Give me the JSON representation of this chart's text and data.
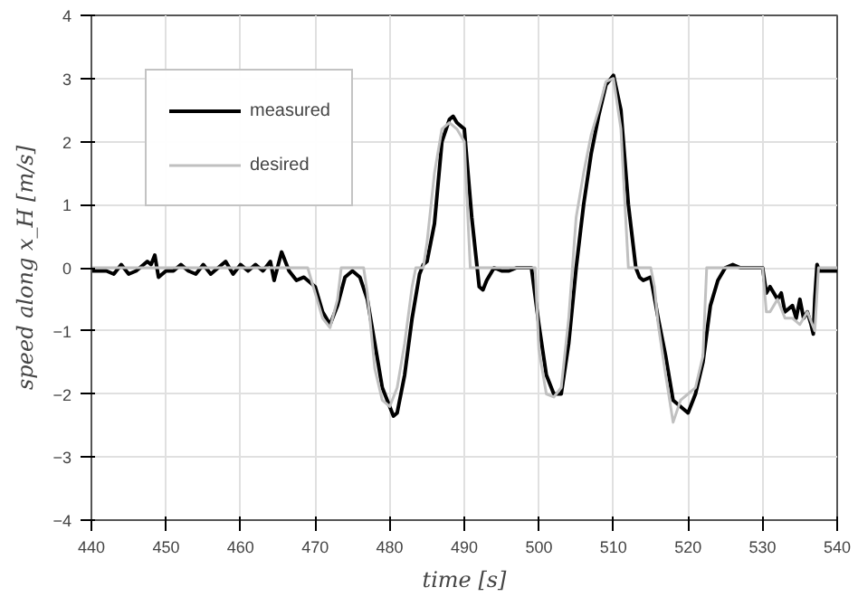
{
  "chart_data": {
    "type": "line",
    "xlabel": "time [s]",
    "ylabel": "speed along x_H [m/s]",
    "xlim": [
      440,
      540
    ],
    "ylim": [
      -4,
      4
    ],
    "xticks": [
      440,
      450,
      460,
      470,
      480,
      490,
      500,
      510,
      520,
      530,
      540
    ],
    "yticks": [
      -4,
      -3,
      -2,
      -1,
      0,
      1,
      2,
      3,
      4
    ],
    "grid": true,
    "legend": "top left",
    "marker": "none",
    "line_style": "solid",
    "series": [
      {
        "name": "measured",
        "color": "#000000",
        "x": [
          440,
          442,
          443,
          444,
          445,
          446,
          447,
          447.5,
          448,
          448.5,
          449,
          450,
          451,
          452,
          453,
          454,
          455,
          456,
          457,
          458,
          459,
          460,
          461,
          462,
          463,
          464,
          464.5,
          465.5,
          466.5,
          467.5,
          468.5,
          469,
          470,
          471,
          472,
          473,
          474,
          475,
          476,
          477,
          478,
          479,
          480,
          480.5,
          481,
          482,
          483,
          484,
          484.5,
          485,
          486,
          487,
          488,
          488.5,
          489,
          490,
          491,
          492,
          492.5,
          493,
          494,
          495,
          496,
          497,
          498,
          499,
          500,
          501,
          502,
          503,
          504,
          505,
          506,
          507,
          508,
          509,
          510,
          511,
          512,
          513,
          513.5,
          514,
          515,
          516,
          517,
          518,
          519,
          520,
          521,
          522,
          523,
          524,
          525,
          526,
          527,
          528,
          529,
          530,
          530.5,
          531,
          532,
          532.5,
          533,
          534,
          534.5,
          535,
          535.5,
          536,
          536.5,
          536.8,
          537,
          537.3,
          537.6,
          540
        ],
        "values": [
          -0.05,
          -0.05,
          -0.1,
          0.05,
          -0.1,
          -0.05,
          0.05,
          0.1,
          0.05,
          0.2,
          -0.15,
          -0.05,
          -0.05,
          0.05,
          -0.05,
          -0.1,
          0.05,
          -0.1,
          0,
          0.1,
          -0.1,
          0.05,
          -0.05,
          0.05,
          -0.05,
          0.1,
          -0.2,
          0.25,
          -0.05,
          -0.2,
          -0.15,
          -0.2,
          -0.3,
          -0.7,
          -0.9,
          -0.6,
          -0.15,
          -0.05,
          -0.15,
          -0.5,
          -1.2,
          -1.9,
          -2.2,
          -2.35,
          -2.3,
          -1.7,
          -0.8,
          -0.1,
          0.05,
          0.1,
          0.7,
          2.0,
          2.35,
          2.4,
          2.3,
          2.2,
          0.8,
          -0.3,
          -0.35,
          -0.2,
          0,
          -0.05,
          -0.05,
          0,
          0,
          0,
          -0.9,
          -1.7,
          -2.0,
          -2.0,
          -1.2,
          0,
          1.0,
          1.8,
          2.4,
          2.9,
          3.05,
          2.5,
          1.0,
          0,
          -0.15,
          -0.2,
          -0.15,
          -0.8,
          -1.4,
          -2.1,
          -2.2,
          -2.3,
          -2.0,
          -1.5,
          -0.6,
          -0.2,
          0,
          0.05,
          0,
          0,
          0,
          0,
          -0.4,
          -0.3,
          -0.5,
          -0.4,
          -0.7,
          -0.6,
          -0.8,
          -0.5,
          -0.8,
          -0.7,
          -0.9,
          -1.05,
          -0.5,
          0.05,
          -0.05,
          -0.05
        ]
      },
      {
        "name": "desired",
        "color": "#c0c0c0",
        "x": [
          440,
          469,
          470,
          471,
          472,
          473,
          473.5,
          476.5,
          477,
          478,
          479,
          480,
          481,
          482,
          483,
          483.5,
          484.5,
          485,
          486,
          487,
          488,
          489,
          490,
          490.8,
          499.5,
          500,
          501,
          502,
          503,
          504,
          505,
          506,
          507,
          508,
          509,
          510,
          511,
          512,
          515,
          515.5,
          516,
          517,
          518,
          519,
          520,
          521,
          522,
          522.5,
          530,
          530.5,
          531,
          532,
          533,
          534,
          535,
          536,
          537,
          537.5,
          540
        ],
        "values": [
          0,
          0,
          -0.4,
          -0.8,
          -0.95,
          -0.5,
          0,
          0,
          -0.4,
          -1.6,
          -2.1,
          -2.2,
          -1.9,
          -1.2,
          -0.3,
          0,
          0,
          0.4,
          1.5,
          2.2,
          2.3,
          2.2,
          2.0,
          0,
          0,
          -1.3,
          -2.0,
          -2.05,
          -1.9,
          -0.8,
          0.8,
          1.5,
          2.1,
          2.5,
          2.95,
          3.0,
          2.2,
          0,
          0,
          -0.3,
          -0.9,
          -1.7,
          -2.45,
          -2.1,
          -2.0,
          -1.9,
          -1.4,
          0,
          0,
          -0.7,
          -0.7,
          -0.5,
          -0.8,
          -0.8,
          -0.9,
          -0.7,
          -1.0,
          0,
          0
        ]
      }
    ]
  }
}
